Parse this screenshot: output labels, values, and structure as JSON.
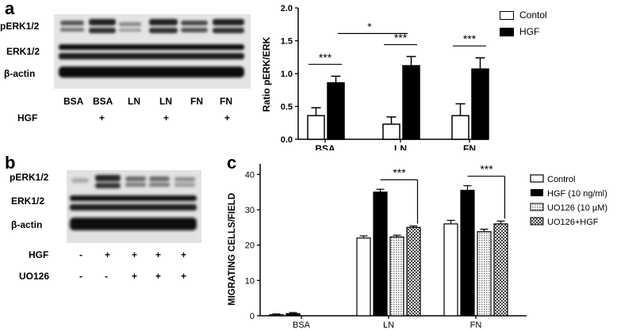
{
  "panels": [
    {
      "letter": "a"
    },
    {
      "letter": "b"
    },
    {
      "letter": "c"
    }
  ],
  "blot_a": {
    "row_labels": [
      "pERK1/2",
      "ERK1/2",
      "β-actin"
    ],
    "lanes": [
      "BSA",
      "BSA",
      "LN",
      "LN",
      "FN",
      "FN"
    ],
    "hgf_label": "HGF",
    "hgf_marks": [
      "",
      "+",
      "",
      "+",
      "",
      "+"
    ]
  },
  "blot_b": {
    "row_labels": [
      "pERK1/2",
      "ERK1/2",
      "β-actin"
    ],
    "hgf_label": "HGF",
    "hgf_marks": [
      "-",
      "+",
      "+",
      "+",
      "+"
    ],
    "uo_label": "UO126",
    "uo_marks": [
      "-",
      "-",
      "+",
      "+",
      "+"
    ]
  },
  "chart_data": [
    {
      "type": "bar",
      "ylabel": "Ratio pERK/ERK",
      "ylim": [
        0,
        2.0
      ],
      "yticks": [
        "0.0",
        "0.5",
        "1.0",
        "1.5",
        "2.0"
      ],
      "categories": [
        "BSA",
        "LN",
        "FN"
      ],
      "series": [
        {
          "name": "Contol",
          "color": "#ffffff",
          "values": [
            0.36,
            0.23,
            0.36
          ],
          "errors": [
            0.12,
            0.11,
            0.18
          ]
        },
        {
          "name": "HGF",
          "color": "#000000",
          "values": [
            0.86,
            1.12,
            1.07
          ],
          "errors": [
            0.1,
            0.14,
            0.17
          ]
        }
      ],
      "legend_position": "top-right",
      "annotations": [
        "***",
        "***",
        "***",
        "*"
      ]
    },
    {
      "type": "bar",
      "ylabel": "MIGRATING CELLS/FIELD",
      "ylim": [
        0,
        40
      ],
      "yticks": [
        "0",
        "10",
        "20",
        "30",
        "40"
      ],
      "categories": [
        "BSA",
        "LN",
        "FN"
      ],
      "series": [
        {
          "name": "Control",
          "fill": "white",
          "values": [
            0.3,
            22,
            26
          ],
          "errors": [
            0.2,
            0.6,
            1.0
          ]
        },
        {
          "name": "HGF (10 ng/ml)",
          "fill": "black",
          "values": [
            0.6,
            35,
            35.5
          ],
          "errors": [
            0.3,
            0.8,
            1.3
          ]
        },
        {
          "name": "UO126 (10 µM)",
          "fill": "dots",
          "values": [
            0,
            22.3,
            23.8
          ],
          "errors": [
            0,
            0.5,
            0.7
          ]
        },
        {
          "name": "UO126+HGF",
          "fill": "checker",
          "values": [
            0,
            25,
            26
          ],
          "errors": [
            0,
            0.4,
            0.8
          ]
        }
      ],
      "legend_position": "top-right",
      "annotations": [
        "***",
        "***"
      ]
    }
  ]
}
